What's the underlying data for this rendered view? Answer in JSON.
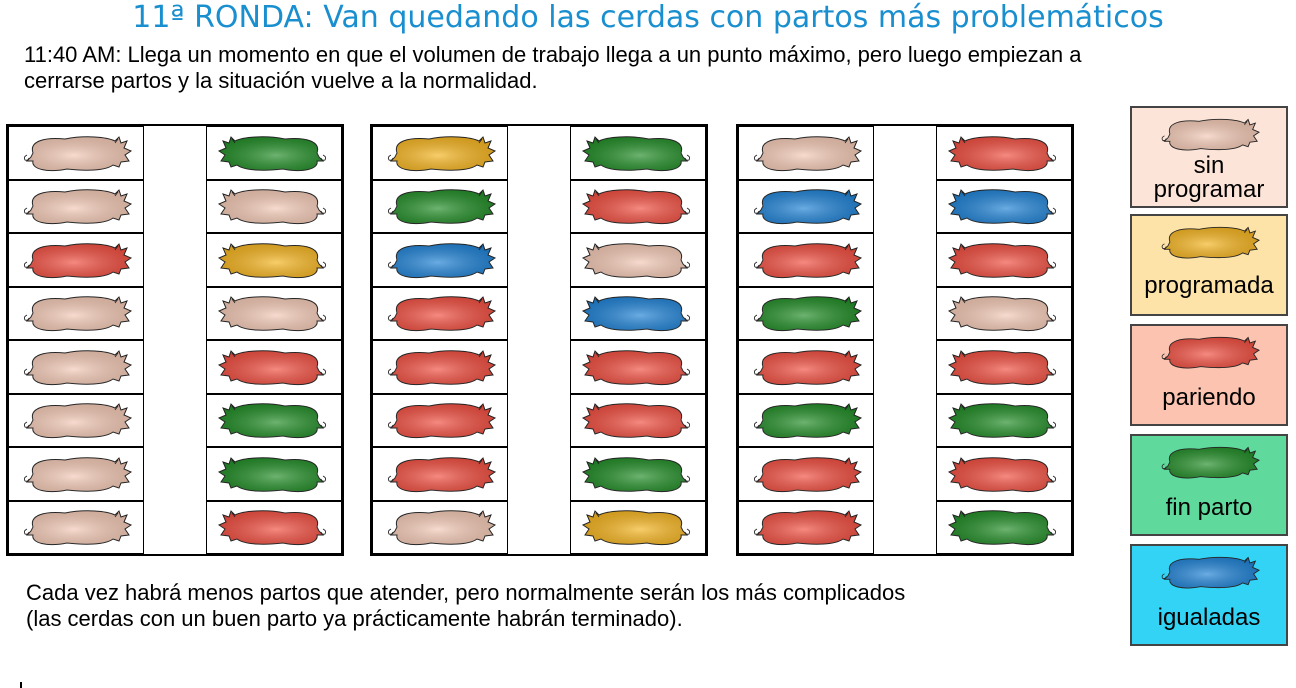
{
  "title": "11ª RONDA: Van quedando las cerdas con partos más problemáticos",
  "intro": "11:40 AM: Llega un momento en que el volumen de trabajo llega a un punto máximo, pero luego empiezan a cerrarse partos y la situación vuelve a la normalidad.",
  "footer_line1": "Cada vez habrá menos partos que atender, pero normalmente serán los más complicados",
  "footer_line2": "(las cerdas con un buen parto ya prácticamente habrán terminado).",
  "status_colors": {
    "sin_programar": "#f3c8b4",
    "programada": "#f4b21a",
    "pariendo": "#f04a3c",
    "fin_parto": "#1d8a22",
    "igualadas": "#1a7fd4"
  },
  "legend": [
    {
      "status": "sin_programar",
      "label": "sin programar",
      "bg": "#fce4d8"
    },
    {
      "status": "programada",
      "label": "programada",
      "bg": "#fde3a8"
    },
    {
      "status": "pariendo",
      "label": "pariendo",
      "bg": "#fbc3b0"
    },
    {
      "status": "fin_parto",
      "label": "fin parto",
      "bg": "#5fd99c"
    },
    {
      "status": "igualadas",
      "label": "igualadas",
      "bg": "#33d3f6"
    }
  ],
  "pens": [
    {
      "left": [
        "sin_programar",
        "sin_programar",
        "pariendo",
        "sin_programar",
        "sin_programar",
        "sin_programar",
        "sin_programar",
        "sin_programar"
      ],
      "right": [
        "fin_parto",
        "sin_programar",
        "programada",
        "sin_programar",
        "pariendo",
        "fin_parto",
        "fin_parto",
        "pariendo"
      ]
    },
    {
      "left": [
        "programada",
        "fin_parto",
        "igualadas",
        "pariendo",
        "pariendo",
        "pariendo",
        "pariendo",
        "sin_programar"
      ],
      "right": [
        "fin_parto",
        "pariendo",
        "sin_programar",
        "igualadas",
        "pariendo",
        "pariendo",
        "fin_parto",
        "programada"
      ]
    },
    {
      "left": [
        "sin_programar",
        "igualadas",
        "pariendo",
        "fin_parto",
        "pariendo",
        "fin_parto",
        "pariendo",
        "pariendo"
      ],
      "right": [
        "pariendo",
        "igualadas",
        "pariendo",
        "sin_programar",
        "pariendo",
        "fin_parto",
        "pariendo",
        "fin_parto"
      ]
    }
  ]
}
